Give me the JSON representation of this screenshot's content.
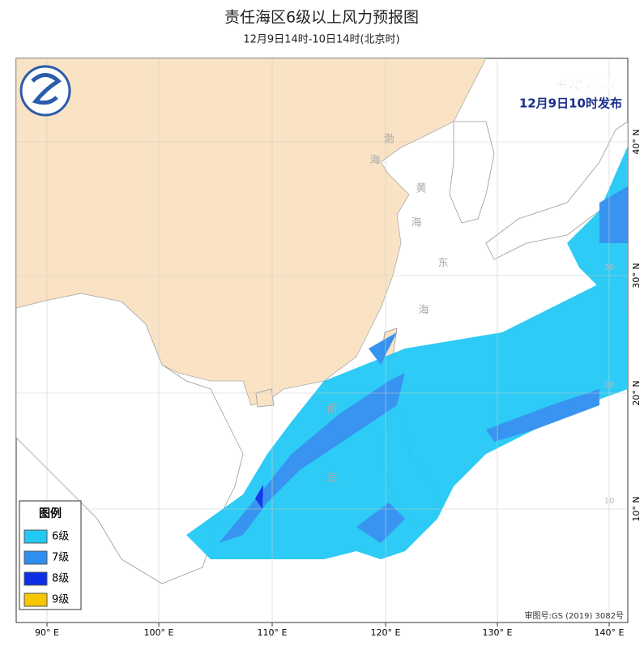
{
  "header": {
    "title": "责任海区6级以上风力预报图",
    "subtitle": "12月9日14时-10日14时(北京时)"
  },
  "issuer": {
    "agency": "中央气象台",
    "issued": "12月9日10时发布"
  },
  "legend": {
    "title": "图例",
    "items": [
      {
        "label": "6级",
        "color": "#22c9f5"
      },
      {
        "label": "7级",
        "color": "#2e8ff0"
      },
      {
        "label": "8级",
        "color": "#0b2ee6"
      },
      {
        "label": "9级",
        "color": "#f7c600"
      }
    ]
  },
  "axes": {
    "longitude": [
      "90° E",
      "100° E",
      "110° E",
      "120° E",
      "130° E",
      "140° E"
    ],
    "latitude": [
      "40° N",
      "30° N",
      "20° N",
      "10° N"
    ],
    "inner_latitude": [
      "30",
      "20",
      "10"
    ]
  },
  "seas": [
    "渤",
    "海",
    "黄",
    "海",
    "东",
    "海",
    "南",
    "海"
  ],
  "approval": "审图号:GS (2019) 3082号"
}
